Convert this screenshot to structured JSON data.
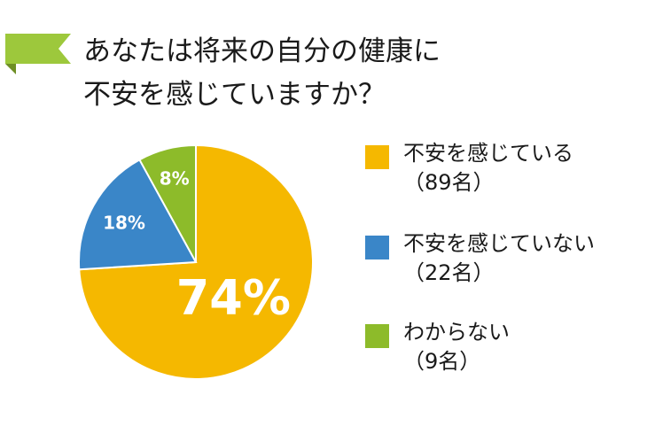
{
  "title_lines": [
    "あなたは将来の自分の健康に",
    "不安を感じていますか？"
  ],
  "colors": {
    "ribbon": "#9dc83c",
    "ribbon_fold": "#6e8f25"
  },
  "chart_data": {
    "type": "pie",
    "slices": [
      {
        "label": "不安を感じている",
        "count_text": "（89名）",
        "count": 89,
        "percent": 74,
        "percent_label": "74%",
        "color": "#f5b800"
      },
      {
        "label": "不安を感じていない",
        "count_text": "（22名）",
        "count": 22,
        "percent": 18,
        "percent_label": "18%",
        "color": "#3a86c8"
      },
      {
        "label": "わからない",
        "count_text": "（9名）",
        "count": 9,
        "percent": 8,
        "percent_label": "8%",
        "color": "#8dbb2a"
      }
    ],
    "legend_placement": "right"
  }
}
